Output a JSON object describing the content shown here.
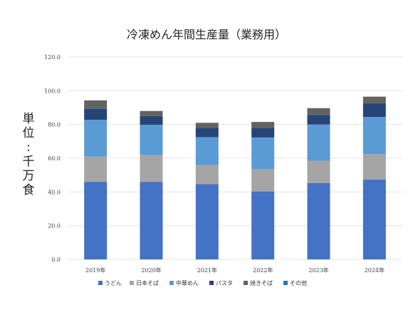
{
  "chart_data": {
    "type": "bar",
    "stacked": true,
    "title": "冷凍めん年間生産量（業務用）",
    "ylabel": "単位：千万食",
    "ylim": [
      0,
      120
    ],
    "yticks": [
      "0.0",
      "20.0",
      "40.0",
      "60.0",
      "80.0",
      "100.0",
      "120.0"
    ],
    "grid": true,
    "legend_position": "bottom",
    "categories": [
      "2019年",
      "2020年",
      "2021年",
      "2022年",
      "2023年",
      "2024年"
    ],
    "series": [
      {
        "name": "うどん",
        "color": "#4472C4",
        "values": [
          46.0,
          46.0,
          44.7,
          40.3,
          45.3,
          47.3
        ]
      },
      {
        "name": "日本そば",
        "color": "#A5A5A5",
        "values": [
          15.0,
          15.8,
          11.3,
          13.2,
          13.2,
          15.2
        ]
      },
      {
        "name": "中華めん",
        "color": "#5B9BD5",
        "values": [
          21.8,
          18.0,
          16.5,
          18.8,
          21.5,
          22.0
        ]
      },
      {
        "name": "パスタ",
        "color": "#264478",
        "values": [
          6.5,
          5.2,
          5.5,
          5.7,
          5.7,
          8.0
        ]
      },
      {
        "name": "焼きそば",
        "color": "#636363",
        "values": [
          5.0,
          3.0,
          3.0,
          3.5,
          4.0,
          4.0
        ]
      },
      {
        "name": "その他",
        "color": "#2E75B6",
        "values": [
          0.0,
          0.0,
          0.0,
          0.0,
          0.0,
          0.0
        ]
      }
    ]
  }
}
